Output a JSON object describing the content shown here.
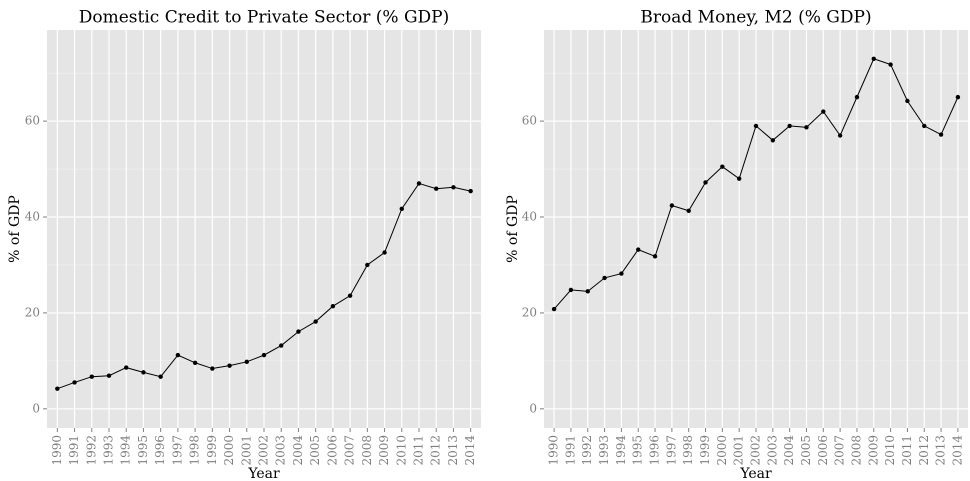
{
  "chart_data": [
    {
      "type": "line",
      "title": "Domestic Credit to Private Sector (% GDP)",
      "x_label": "Year",
      "y_label": "% of GDP",
      "categories": [
        "1990",
        "1991",
        "1992",
        "1993",
        "1994",
        "1995",
        "1996",
        "1997",
        "1998",
        "1999",
        "2000",
        "2001",
        "2002",
        "2003",
        "2004",
        "2005",
        "2006",
        "2007",
        "2008",
        "2009",
        "2010",
        "2011",
        "2012",
        "2013",
        "2014"
      ],
      "values": [
        4.2,
        5.5,
        6.7,
        6.9,
        8.6,
        7.6,
        6.7,
        11.2,
        9.6,
        8.4,
        9.0,
        9.8,
        11.2,
        13.2,
        16.1,
        18.2,
        21.4,
        23.6,
        30.0,
        32.6,
        41.7,
        47.0,
        45.9,
        46.2,
        45.4
      ],
      "color": "#000000",
      "ylim": [
        -4,
        79
      ],
      "yticks": [
        0,
        20,
        40,
        60
      ],
      "grid": true
    },
    {
      "type": "line",
      "title": "Broad Money, M2 (% GDP)",
      "x_label": "Year",
      "y_label": "% of GDP",
      "categories": [
        "1990",
        "1991",
        "1992",
        "1993",
        "1994",
        "1995",
        "1996",
        "1997",
        "1998",
        "1999",
        "2000",
        "2001",
        "2002",
        "2003",
        "2004",
        "2005",
        "2006",
        "2007",
        "2008",
        "2009",
        "2010",
        "2011",
        "2012",
        "2013",
        "2014"
      ],
      "values": [
        20.8,
        24.8,
        24.5,
        27.3,
        28.2,
        33.2,
        31.8,
        42.4,
        41.3,
        47.2,
        50.5,
        48.0,
        59.0,
        56.0,
        59.0,
        58.7,
        62.0,
        57.0,
        65.0,
        73.0,
        71.8,
        64.2,
        59.0,
        57.2,
        65.0
      ],
      "color": "#000000",
      "ylim": [
        -4,
        79
      ],
      "yticks": [
        0,
        20,
        40,
        60
      ],
      "grid": true
    }
  ]
}
